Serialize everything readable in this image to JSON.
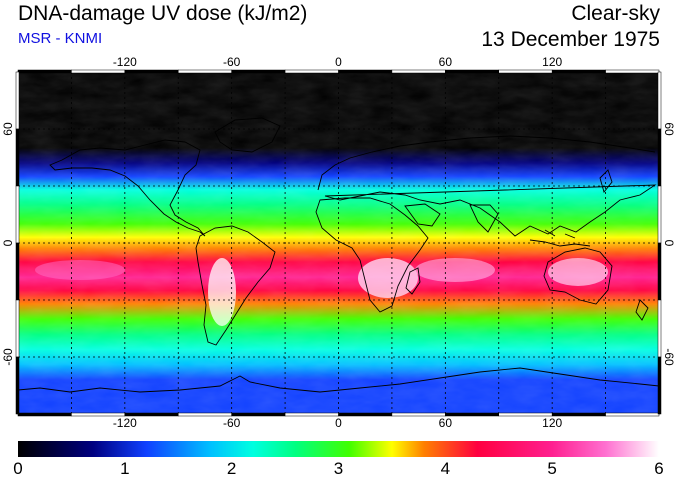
{
  "header": {
    "title": "DNA-damage UV dose (kJ/m2)",
    "subtitle": "MSR - KNMI",
    "condition": "Clear-sky",
    "date": "13 December 1975"
  },
  "colors": {
    "subtitle": "#1010e0",
    "coast": "#000000",
    "grid": "#000000"
  },
  "map": {
    "projection": "equirectangular",
    "lon_range": [
      -180,
      180
    ],
    "lat_range": [
      -90,
      90
    ],
    "lon_ticks": [
      -120,
      -60,
      0,
      60,
      120
    ],
    "lat_ticks": [
      60,
      0,
      -60
    ],
    "lon_tick_labels": [
      "-120",
      "-60",
      "0",
      "60",
      "120"
    ],
    "lat_tick_labels": [
      "60",
      "0",
      "-60"
    ]
  },
  "colorbar": {
    "min": 0,
    "max": 6,
    "tick_labels": [
      "0",
      "1",
      "2",
      "3",
      "4",
      "5",
      "6"
    ],
    "stops": [
      [
        0.0,
        "#000000"
      ],
      [
        0.7,
        "#000080"
      ],
      [
        1.2,
        "#1040ff"
      ],
      [
        1.8,
        "#00c0ff"
      ],
      [
        2.2,
        "#00ffe0"
      ],
      [
        2.6,
        "#00ff80"
      ],
      [
        3.1,
        "#40ff00"
      ],
      [
        3.5,
        "#ffff00"
      ],
      [
        3.8,
        "#ff8000"
      ],
      [
        4.3,
        "#ff0040"
      ],
      [
        5.0,
        "#ff2090"
      ],
      [
        5.5,
        "#ff70d0"
      ],
      [
        6.0,
        "#ffffff"
      ]
    ]
  }
}
